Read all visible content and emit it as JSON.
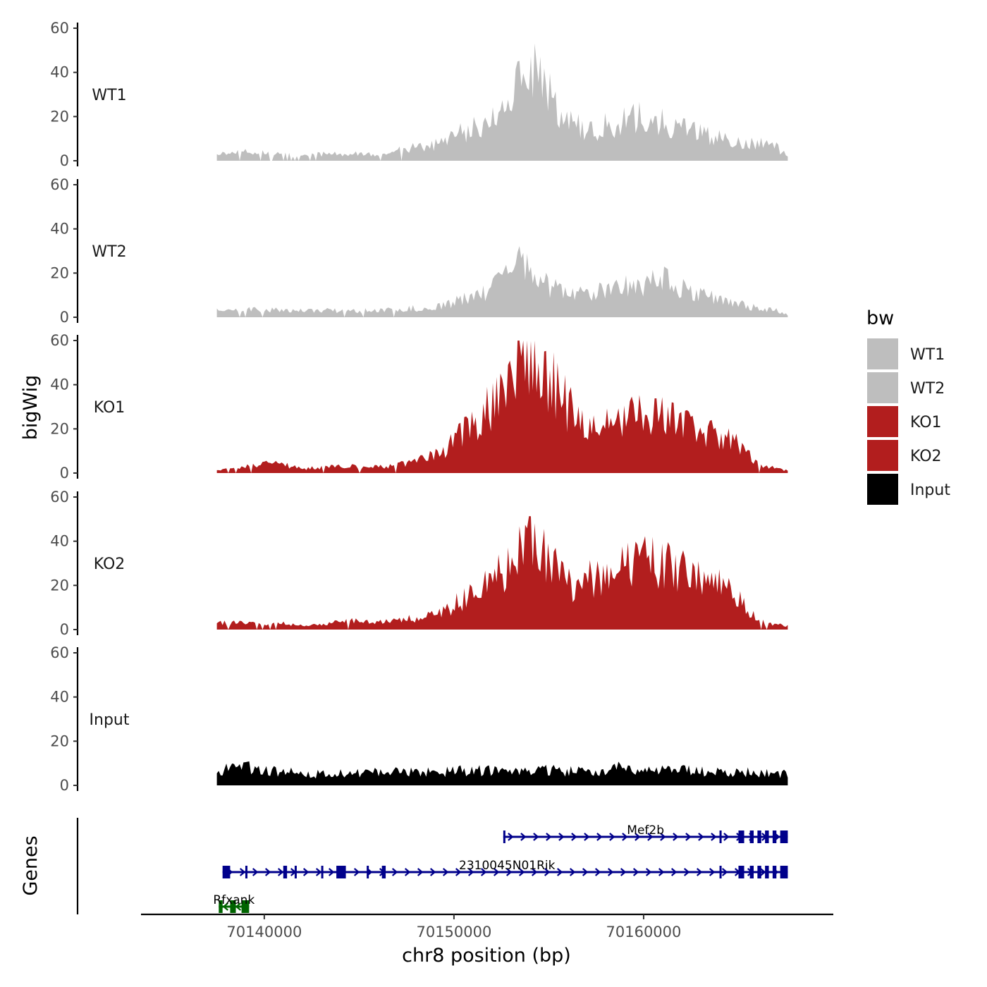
{
  "chart_data": {
    "type": "area",
    "xlabel": "chr8 position (bp)",
    "ylabel": "bigWig",
    "genes_label": "Genes",
    "xlim": [
      70133500,
      70170000
    ],
    "signal_range": [
      70137500,
      70167600
    ],
    "ylim": [
      0,
      60
    ],
    "yticks": [
      0,
      20,
      40,
      60
    ],
    "xticks": [
      70140000,
      70150000,
      70160000
    ],
    "xtick_labels": [
      "70140000",
      "70150000",
      "70160000"
    ],
    "legend": {
      "title": "bw",
      "placement": "right",
      "entries": [
        {
          "label": "WT1",
          "color": "#bebebe"
        },
        {
          "label": "WT2",
          "color": "#bebebe"
        },
        {
          "label": "KO1",
          "color": "#b21e1e"
        },
        {
          "label": "KO2",
          "color": "#b21e1e"
        },
        {
          "label": "Input",
          "color": "#000000"
        }
      ]
    },
    "series": [
      {
        "name": "WT1",
        "color": "#bebebe",
        "profile": [
          [
            70137500,
            3
          ],
          [
            70139000,
            4
          ],
          [
            70141000,
            3
          ],
          [
            70143000,
            3
          ],
          [
            70144500,
            3
          ],
          [
            70146000,
            3
          ],
          [
            70148000,
            6
          ],
          [
            70149500,
            8
          ],
          [
            70150500,
            13
          ],
          [
            70151500,
            16
          ],
          [
            70152500,
            22
          ],
          [
            70153300,
            32
          ],
          [
            70153900,
            42
          ],
          [
            70154500,
            38
          ],
          [
            70155200,
            30
          ],
          [
            70156000,
            18
          ],
          [
            70157000,
            13
          ],
          [
            70158000,
            16
          ],
          [
            70159000,
            18
          ],
          [
            70160000,
            20
          ],
          [
            70161000,
            18
          ],
          [
            70162000,
            14
          ],
          [
            70163000,
            12
          ],
          [
            70164000,
            10
          ],
          [
            70165000,
            9
          ],
          [
            70166000,
            8
          ],
          [
            70167000,
            6
          ],
          [
            70167600,
            2
          ]
        ]
      },
      {
        "name": "WT2",
        "color": "#bebebe",
        "profile": [
          [
            70137500,
            3
          ],
          [
            70139000,
            4
          ],
          [
            70141000,
            3
          ],
          [
            70143000,
            3
          ],
          [
            70144500,
            3
          ],
          [
            70146000,
            3
          ],
          [
            70148000,
            4
          ],
          [
            70149500,
            6
          ],
          [
            70150500,
            8
          ],
          [
            70151500,
            11
          ],
          [
            70152500,
            16
          ],
          [
            70153300,
            24
          ],
          [
            70153900,
            22
          ],
          [
            70154500,
            16
          ],
          [
            70155200,
            13
          ],
          [
            70156000,
            10
          ],
          [
            70157000,
            10
          ],
          [
            70158000,
            13
          ],
          [
            70159000,
            14
          ],
          [
            70160000,
            14
          ],
          [
            70161000,
            17
          ],
          [
            70162000,
            14
          ],
          [
            70163000,
            10
          ],
          [
            70164000,
            8
          ],
          [
            70165000,
            6
          ],
          [
            70166000,
            4
          ],
          [
            70167000,
            3
          ],
          [
            70167600,
            1
          ]
        ]
      },
      {
        "name": "KO1",
        "color": "#b21e1e",
        "profile": [
          [
            70137500,
            1
          ],
          [
            70139000,
            3
          ],
          [
            70140500,
            5
          ],
          [
            70142000,
            2
          ],
          [
            70143500,
            3
          ],
          [
            70145000,
            3
          ],
          [
            70146500,
            3
          ],
          [
            70148000,
            5
          ],
          [
            70149500,
            10
          ],
          [
            70150500,
            20
          ],
          [
            70151500,
            26
          ],
          [
            70152500,
            34
          ],
          [
            70153300,
            48
          ],
          [
            70153900,
            58
          ],
          [
            70154500,
            52
          ],
          [
            70155200,
            42
          ],
          [
            70156000,
            30
          ],
          [
            70157000,
            18
          ],
          [
            70158000,
            22
          ],
          [
            70159000,
            25
          ],
          [
            70160000,
            30
          ],
          [
            70161000,
            26
          ],
          [
            70162000,
            22
          ],
          [
            70163000,
            20
          ],
          [
            70164000,
            16
          ],
          [
            70165000,
            14
          ],
          [
            70166000,
            4
          ],
          [
            70167000,
            2
          ],
          [
            70167600,
            1
          ]
        ]
      },
      {
        "name": "KO2",
        "color": "#b21e1e",
        "profile": [
          [
            70137500,
            3
          ],
          [
            70139000,
            3
          ],
          [
            70140500,
            3
          ],
          [
            70142000,
            2
          ],
          [
            70143500,
            3
          ],
          [
            70145000,
            4
          ],
          [
            70146500,
            4
          ],
          [
            70148000,
            5
          ],
          [
            70149500,
            8
          ],
          [
            70150500,
            14
          ],
          [
            70151500,
            18
          ],
          [
            70152500,
            26
          ],
          [
            70153300,
            34
          ],
          [
            70153900,
            40
          ],
          [
            70154500,
            36
          ],
          [
            70155200,
            30
          ],
          [
            70156000,
            20
          ],
          [
            70157000,
            22
          ],
          [
            70158000,
            26
          ],
          [
            70159000,
            30
          ],
          [
            70160000,
            32
          ],
          [
            70161000,
            30
          ],
          [
            70162000,
            28
          ],
          [
            70163000,
            24
          ],
          [
            70164000,
            20
          ],
          [
            70165000,
            14
          ],
          [
            70166000,
            4
          ],
          [
            70167000,
            2
          ],
          [
            70167600,
            2
          ]
        ]
      },
      {
        "name": "Input",
        "color": "#000000",
        "profile": [
          [
            70137500,
            7
          ],
          [
            70139000,
            8
          ],
          [
            70141000,
            6
          ],
          [
            70143000,
            5
          ],
          [
            70145000,
            6
          ],
          [
            70147000,
            6
          ],
          [
            70149000,
            6
          ],
          [
            70151000,
            7
          ],
          [
            70153000,
            6
          ],
          [
            70155000,
            7
          ],
          [
            70157000,
            6
          ],
          [
            70158500,
            8
          ],
          [
            70160000,
            6
          ],
          [
            70162000,
            7
          ],
          [
            70164000,
            6
          ],
          [
            70166000,
            6
          ],
          [
            70167600,
            5
          ]
        ]
      }
    ],
    "genes": [
      {
        "name": "Mef2b",
        "color": "#00008b",
        "strand": "+",
        "row": 1,
        "start": 70152600,
        "end": 70167600,
        "exons": [
          [
            70152600,
            70152700
          ],
          [
            70164000,
            70164100
          ],
          [
            70165000,
            70165300
          ],
          [
            70165600,
            70165800
          ],
          [
            70166000,
            70166200
          ],
          [
            70166400,
            70166600
          ],
          [
            70166800,
            70167000
          ],
          [
            70167200,
            70167600
          ]
        ],
        "label_pos": 70160100
      },
      {
        "name": "2310045N01Rik",
        "color": "#00008b",
        "strand": "+",
        "row": 2,
        "start": 70137800,
        "end": 70167600,
        "exons": [
          [
            70137800,
            70138200
          ],
          [
            70139000,
            70139100
          ],
          [
            70141000,
            70141200
          ],
          [
            70141600,
            70141700
          ],
          [
            70143000,
            70143100
          ],
          [
            70143800,
            70144300
          ],
          [
            70145400,
            70145500
          ],
          [
            70146200,
            70146400
          ],
          [
            70164000,
            70164100
          ],
          [
            70165000,
            70165300
          ],
          [
            70165600,
            70165800
          ],
          [
            70166000,
            70166200
          ],
          [
            70166400,
            70166600
          ],
          [
            70166800,
            70167000
          ],
          [
            70167200,
            70167600
          ]
        ],
        "label_pos": 70152800
      },
      {
        "name": "Rfxank",
        "color": "#006400",
        "strand": "-",
        "row": 3,
        "start": 70137600,
        "end": 70139200,
        "exons": [
          [
            70137600,
            70137800
          ],
          [
            70138200,
            70138500
          ],
          [
            70138800,
            70139200
          ]
        ],
        "label_pos": 70138400
      }
    ]
  }
}
